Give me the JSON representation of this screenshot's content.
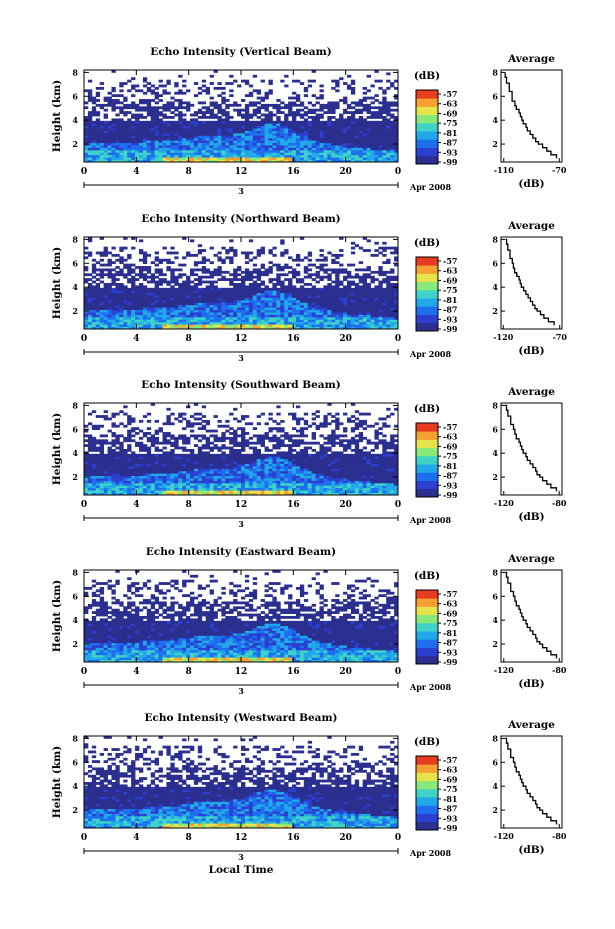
{
  "chart_data": [
    {
      "type": "heatmap",
      "title": "Echo Intensity (Vertical Beam)",
      "ylabel": "Height (km)",
      "xlabel": "",
      "date_label": "Apr 2008",
      "day_label": "3",
      "x_ticks": [
        "0",
        "4",
        "8",
        "12",
        "16",
        "20",
        "0"
      ],
      "y_ticks": [
        "2",
        "4",
        "6",
        "8"
      ],
      "xlim": [
        0,
        24
      ],
      "ylim": [
        0.5,
        8.2
      ],
      "colorbar": {
        "unit": "(dB)",
        "labels": [
          "-57",
          "-63",
          "-69",
          "-75",
          "-81",
          "-87",
          "-93",
          "-99"
        ]
      },
      "profile": {
        "title": "Average",
        "xlabel": "(dB)",
        "x_ticks": [
          "-110",
          "-70"
        ],
        "xlim": [
          -112,
          -68
        ],
        "y_ticks": [
          "2",
          "4",
          "6",
          "8"
        ],
        "ylim": [
          0.5,
          8.2
        ],
        "x": [
          -109,
          -109,
          -108,
          -106,
          -106,
          -104,
          -104,
          -102,
          -101,
          -99,
          -98,
          -97,
          -96,
          -94,
          -93,
          -91,
          -89,
          -87,
          -85,
          -82,
          -79,
          -76,
          -72
        ],
        "y": [
          8.0,
          7.6,
          7.1,
          6.8,
          6.4,
          6.0,
          5.6,
          5.2,
          4.9,
          4.6,
          4.3,
          4.0,
          3.7,
          3.4,
          3.1,
          2.8,
          2.5,
          2.2,
          2.0,
          1.7,
          1.4,
          1.1,
          0.8
        ]
      }
    },
    {
      "type": "heatmap",
      "title": "Echo Intensity (Northward Beam)",
      "ylabel": "Height (km)",
      "xlabel": "",
      "date_label": "Apr 2008",
      "day_label": "3",
      "x_ticks": [
        "0",
        "4",
        "8",
        "12",
        "16",
        "20",
        "0"
      ],
      "y_ticks": [
        "2",
        "4",
        "6",
        "8"
      ],
      "xlim": [
        0,
        24
      ],
      "ylim": [
        0.5,
        8.2
      ],
      "colorbar": {
        "unit": "(dB)",
        "labels": [
          "-57",
          "-63",
          "-69",
          "-75",
          "-81",
          "-87",
          "-93",
          "-99"
        ]
      },
      "profile": {
        "title": "Average",
        "xlabel": "(dB)",
        "x_ticks": [
          "-120",
          "-70"
        ],
        "xlim": [
          -122,
          -68
        ],
        "y_ticks": [
          "2",
          "4",
          "6",
          "8"
        ],
        "ylim": [
          0.5,
          8.2
        ],
        "x": [
          -118,
          -117,
          -116,
          -114,
          -114,
          -112,
          -111,
          -110,
          -108,
          -106,
          -105,
          -104,
          -102,
          -100,
          -98,
          -96,
          -94,
          -92,
          -90,
          -87,
          -84,
          -80,
          -75
        ],
        "y": [
          8.0,
          7.6,
          7.1,
          6.8,
          6.4,
          6.0,
          5.6,
          5.2,
          4.9,
          4.6,
          4.3,
          4.0,
          3.7,
          3.4,
          3.1,
          2.8,
          2.5,
          2.2,
          2.0,
          1.7,
          1.4,
          1.1,
          0.8
        ]
      }
    },
    {
      "type": "heatmap",
      "title": "Echo Intensity (Southward Beam)",
      "ylabel": "Height (km)",
      "xlabel": "",
      "date_label": "Apr 2008",
      "day_label": "3",
      "x_ticks": [
        "0",
        "4",
        "8",
        "12",
        "16",
        "20",
        "0"
      ],
      "y_ticks": [
        "2",
        "4",
        "6",
        "8"
      ],
      "xlim": [
        0,
        24
      ],
      "ylim": [
        0.5,
        8.2
      ],
      "colorbar": {
        "unit": "(dB)",
        "labels": [
          "-57",
          "-63",
          "-69",
          "-75",
          "-81",
          "-87",
          "-93",
          "-99"
        ]
      },
      "profile": {
        "title": "Average",
        "xlabel": "(dB)",
        "x_ticks": [
          "-120",
          "-80"
        ],
        "xlim": [
          -122,
          -78
        ],
        "y_ticks": [
          "2",
          "4",
          "6",
          "8"
        ],
        "ylim": [
          0.5,
          8.2
        ],
        "x": [
          -119,
          -118,
          -117,
          -115,
          -115,
          -113,
          -112,
          -111,
          -109,
          -108,
          -107,
          -106,
          -104,
          -103,
          -101,
          -99,
          -97,
          -96,
          -94,
          -92,
          -89,
          -86,
          -82
        ],
        "y": [
          8.0,
          7.6,
          7.1,
          6.8,
          6.4,
          6.0,
          5.6,
          5.2,
          4.9,
          4.6,
          4.3,
          4.0,
          3.7,
          3.4,
          3.1,
          2.8,
          2.5,
          2.2,
          2.0,
          1.7,
          1.4,
          1.1,
          0.8
        ]
      }
    },
    {
      "type": "heatmap",
      "title": "Echo Intensity (Eastward Beam)",
      "ylabel": "Height (km)",
      "xlabel": "",
      "date_label": "Apr 2008",
      "day_label": "3",
      "x_ticks": [
        "0",
        "4",
        "8",
        "12",
        "16",
        "20",
        "0"
      ],
      "y_ticks": [
        "2",
        "4",
        "6",
        "8"
      ],
      "xlim": [
        0,
        24
      ],
      "ylim": [
        0.5,
        8.2
      ],
      "colorbar": {
        "unit": "(dB)",
        "labels": [
          "-57",
          "-63",
          "-69",
          "-75",
          "-81",
          "-87",
          "-93",
          "-99"
        ]
      },
      "profile": {
        "title": "Average",
        "xlabel": "(dB)",
        "x_ticks": [
          "-120",
          "-80"
        ],
        "xlim": [
          -122,
          -78
        ],
        "y_ticks": [
          "2",
          "4",
          "6",
          "8"
        ],
        "ylim": [
          0.5,
          8.2
        ],
        "x": [
          -119,
          -118,
          -117,
          -115,
          -115,
          -113,
          -112,
          -111,
          -109,
          -108,
          -107,
          -106,
          -104,
          -103,
          -101,
          -99,
          -97,
          -96,
          -94,
          -92,
          -89,
          -86,
          -82
        ],
        "y": [
          8.0,
          7.6,
          7.1,
          6.8,
          6.4,
          6.0,
          5.6,
          5.2,
          4.9,
          4.6,
          4.3,
          4.0,
          3.7,
          3.4,
          3.1,
          2.8,
          2.5,
          2.2,
          2.0,
          1.7,
          1.4,
          1.1,
          0.8
        ]
      }
    },
    {
      "type": "heatmap",
      "title": "Echo Intensity (Westward Beam)",
      "ylabel": "Height (km)",
      "xlabel": "Local Time",
      "date_label": "Apr 2008",
      "day_label": "3",
      "x_ticks": [
        "0",
        "4",
        "8",
        "12",
        "16",
        "20",
        "0"
      ],
      "y_ticks": [
        "2",
        "4",
        "6",
        "8"
      ],
      "xlim": [
        0,
        24
      ],
      "ylim": [
        0.5,
        8.2
      ],
      "colorbar": {
        "unit": "(dB)",
        "labels": [
          "-57",
          "-63",
          "-69",
          "-75",
          "-81",
          "-87",
          "-93",
          "-99"
        ]
      },
      "profile": {
        "title": "Average",
        "xlabel": "(dB)",
        "x_ticks": [
          "-120",
          "-80"
        ],
        "xlim": [
          -122,
          -78
        ],
        "y_ticks": [
          "2",
          "4",
          "6",
          "8"
        ],
        "ylim": [
          0.5,
          8.2
        ],
        "x": [
          -119,
          -118,
          -117,
          -115,
          -115,
          -113,
          -112,
          -111,
          -109,
          -108,
          -107,
          -106,
          -104,
          -103,
          -101,
          -99,
          -97,
          -96,
          -94,
          -92,
          -89,
          -86,
          -82
        ],
        "y": [
          8.0,
          7.6,
          7.1,
          6.8,
          6.4,
          6.0,
          5.6,
          5.2,
          4.9,
          4.6,
          4.3,
          4.0,
          3.7,
          3.4,
          3.1,
          2.8,
          2.5,
          2.2,
          2.0,
          1.7,
          1.4,
          1.1,
          0.8
        ]
      }
    }
  ],
  "colors": {
    "scale": [
      "#2b2f8f",
      "#2c3fd0",
      "#1e6ff0",
      "#21a8e8",
      "#3fd3c8",
      "#88e87a",
      "#e8e34a",
      "#f5a030",
      "#e83c20"
    ]
  }
}
